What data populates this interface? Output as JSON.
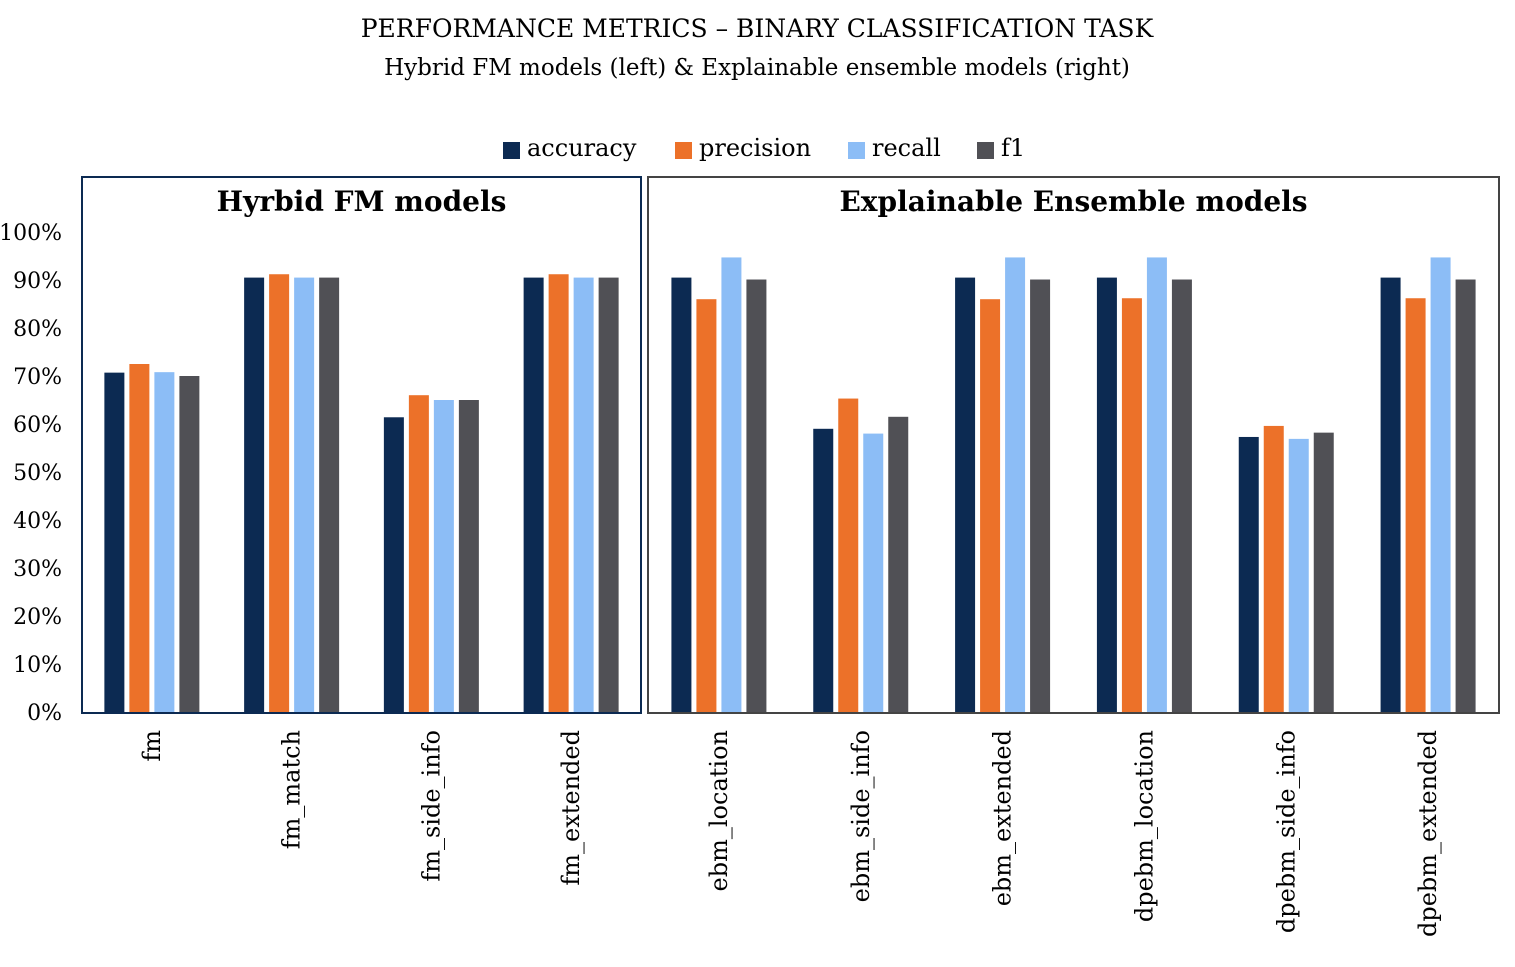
{
  "chart_data": {
    "type": "bar",
    "title": "PERFORMANCE METRICS – BINARY CLASSIFICATION TASK",
    "subtitle": "Hybrid FM models (left) & Explainable ensemble models (right)",
    "legend_position": "top-center",
    "ylim": [
      0,
      100
    ],
    "yticks": [
      "0%",
      "10%",
      "20%",
      "30%",
      "40%",
      "50%",
      "60%",
      "70%",
      "80%",
      "90%",
      "100%"
    ],
    "grid": false,
    "series": [
      {
        "name": "accuracy",
        "color": "#0c2a52",
        "values": [
          70.7,
          90.5,
          61.4,
          90.5,
          90.5,
          59.0,
          90.5,
          90.5,
          57.3,
          90.5
        ]
      },
      {
        "name": "precision",
        "color": "#ec7129",
        "values": [
          72.5,
          91.2,
          66.0,
          91.2,
          86.0,
          65.3,
          86.0,
          86.2,
          59.6,
          86.2
        ]
      },
      {
        "name": "recall",
        "color": "#8cbdf6",
        "values": [
          70.8,
          90.5,
          65.0,
          90.5,
          94.7,
          58.0,
          94.7,
          94.7,
          56.9,
          94.7
        ]
      },
      {
        "name": "f1",
        "color": "#505055",
        "values": [
          70.0,
          90.5,
          65.0,
          90.5,
          90.1,
          61.5,
          90.1,
          90.1,
          58.2,
          90.1
        ]
      }
    ],
    "groups": [
      {
        "title": "Hyrbid FM models",
        "border_color": "#0c2a52",
        "categories": [
          "fm",
          "fm_match",
          "fm_side_info",
          "fm_extended"
        ]
      },
      {
        "title": "Explainable Ensemble models",
        "border_color": "#444444",
        "categories": [
          "ebm_location",
          "ebm_side_info",
          "ebm_extended",
          "dpebm_location",
          "dpebm_side_info",
          "dpebm_extended"
        ]
      }
    ]
  }
}
